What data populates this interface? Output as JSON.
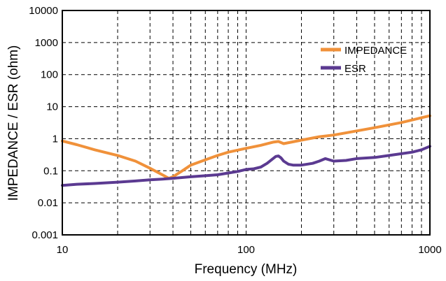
{
  "chart_data": {
    "type": "line",
    "title": "",
    "xlabel": "Frequency (MHz)",
    "ylabel": "IMPEDANCE / ESR (ohm)",
    "xscale": "log",
    "yscale": "log",
    "xlim": [
      10,
      1000
    ],
    "ylim": [
      0.001,
      10000
    ],
    "x_ticks": [
      "10",
      "100",
      "1000"
    ],
    "y_ticks": [
      "0.001",
      "0.01",
      "0.1",
      "1",
      "10",
      "100",
      "1000",
      "10000"
    ],
    "grid": "on (dashed, major and minor)",
    "legend": "top-right",
    "series": [
      {
        "name": "IMPEDANCE",
        "color": "#f0913a",
        "x": [
          10,
          12,
          15,
          20,
          25,
          30,
          35,
          38,
          40,
          45,
          50,
          60,
          70,
          80,
          100,
          120,
          140,
          150,
          160,
          200,
          250,
          300,
          400,
          500,
          700,
          1000
        ],
        "y": [
          0.85,
          0.65,
          0.45,
          0.3,
          0.2,
          0.12,
          0.075,
          0.058,
          0.065,
          0.1,
          0.15,
          0.22,
          0.3,
          0.38,
          0.5,
          0.62,
          0.78,
          0.82,
          0.7,
          0.9,
          1.15,
          1.3,
          1.75,
          2.2,
          3.2,
          5.2
        ]
      },
      {
        "name": "ESR",
        "color": "#5b3a91",
        "x": [
          10,
          12,
          15,
          20,
          25,
          30,
          35,
          40,
          50,
          60,
          70,
          80,
          90,
          100,
          110,
          120,
          130,
          140,
          145,
          150,
          155,
          160,
          170,
          180,
          200,
          230,
          250,
          270,
          300,
          350,
          400,
          500,
          600,
          700,
          800,
          900,
          1000
        ],
        "y": [
          0.035,
          0.038,
          0.04,
          0.044,
          0.048,
          0.052,
          0.055,
          0.058,
          0.065,
          0.07,
          0.075,
          0.085,
          0.095,
          0.11,
          0.115,
          0.13,
          0.17,
          0.24,
          0.28,
          0.29,
          0.25,
          0.2,
          0.16,
          0.15,
          0.15,
          0.17,
          0.2,
          0.24,
          0.2,
          0.21,
          0.24,
          0.26,
          0.3,
          0.34,
          0.38,
          0.45,
          0.58
        ]
      }
    ]
  }
}
